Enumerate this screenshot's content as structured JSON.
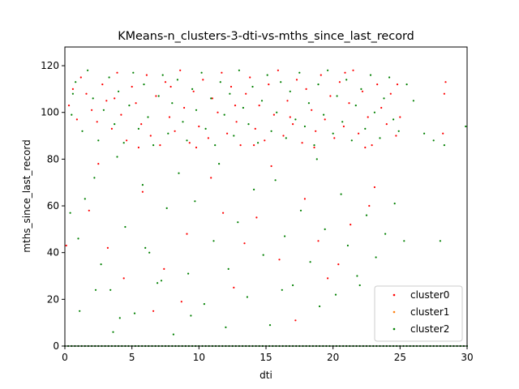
{
  "chart_data": {
    "type": "scatter",
    "title": "KMeans-n_clusters-3-dti-vs-mths_since_last_record",
    "xlabel": "dti",
    "ylabel": "mths_since_last_record",
    "xlim": [
      0,
      30
    ],
    "ylim": [
      0,
      128
    ],
    "xticks": [
      0,
      5,
      10,
      15,
      20,
      25,
      30
    ],
    "yticks": [
      0,
      20,
      40,
      60,
      80,
      100,
      120
    ],
    "grid": false,
    "legend_position": "lower-right",
    "series": [
      {
        "name": "cluster0",
        "color": "#ff0000",
        "points": [
          [
            0.3,
            103
          ],
          [
            0.6,
            110
          ],
          [
            0.9,
            97
          ],
          [
            1.2,
            115
          ],
          [
            1.6,
            108
          ],
          [
            2.0,
            101
          ],
          [
            2.4,
            96
          ],
          [
            2.8,
            112
          ],
          [
            3.1,
            105
          ],
          [
            3.5,
            93
          ],
          [
            3.9,
            117
          ],
          [
            4.2,
            99
          ],
          [
            4.6,
            88
          ],
          [
            5.0,
            111
          ],
          [
            5.3,
            104
          ],
          [
            5.7,
            95
          ],
          [
            6.1,
            116
          ],
          [
            6.4,
            90
          ],
          [
            6.8,
            107
          ],
          [
            7.1,
            86
          ],
          [
            7.5,
            113
          ],
          [
            7.8,
            98
          ],
          [
            8.2,
            92
          ],
          [
            8.6,
            118
          ],
          [
            8.9,
            102
          ],
          [
            9.3,
            87
          ],
          [
            9.6,
            109
          ],
          [
            10.0,
            94
          ],
          [
            10.3,
            114
          ],
          [
            10.7,
            89
          ],
          [
            11.0,
            106
          ],
          [
            11.4,
            100
          ],
          [
            11.7,
            117
          ],
          [
            12.1,
            91
          ],
          [
            12.4,
            111
          ],
          [
            12.8,
            96
          ],
          [
            13.1,
            86
          ],
          [
            13.5,
            108
          ],
          [
            13.8,
            115
          ],
          [
            14.2,
            93
          ],
          [
            14.5,
            103
          ],
          [
            14.9,
            88
          ],
          [
            15.2,
            112
          ],
          [
            15.6,
            99
          ],
          [
            15.9,
            118
          ],
          [
            16.3,
            90
          ],
          [
            16.6,
            105
          ],
          [
            17.0,
            95
          ],
          [
            17.3,
            114
          ],
          [
            17.7,
            87
          ],
          [
            18.0,
            110
          ],
          [
            18.4,
            101
          ],
          [
            18.7,
            92
          ],
          [
            19.1,
            116
          ],
          [
            19.4,
            97
          ],
          [
            19.8,
            107
          ],
          [
            20.1,
            89
          ],
          [
            20.5,
            113
          ],
          [
            20.8,
            94
          ],
          [
            21.2,
            104
          ],
          [
            21.5,
            118
          ],
          [
            21.9,
            91
          ],
          [
            22.2,
            109
          ],
          [
            22.6,
            98
          ],
          [
            22.9,
            86
          ],
          [
            23.3,
            112
          ],
          [
            23.6,
            102
          ],
          [
            24.0,
            95
          ],
          [
            24.3,
            108
          ],
          [
            24.7,
            90
          ],
          [
            5.5,
            85
          ],
          [
            9.8,
            85
          ],
          [
            14.1,
            86
          ],
          [
            18.6,
            85
          ],
          [
            22.4,
            85
          ],
          [
            16.8,
            98
          ],
          [
            12.7,
            103
          ],
          [
            7.9,
            111
          ],
          [
            20.9,
            117
          ],
          [
            3.7,
            106
          ],
          [
            1.8,
            58
          ],
          [
            3.2,
            42
          ],
          [
            5.8,
            66
          ],
          [
            7.4,
            33
          ],
          [
            9.1,
            48
          ],
          [
            10.9,
            72
          ],
          [
            12.6,
            25
          ],
          [
            14.3,
            55
          ],
          [
            16.0,
            37
          ],
          [
            17.9,
            63
          ],
          [
            19.6,
            29
          ],
          [
            21.3,
            52
          ],
          [
            23.1,
            68
          ],
          [
            4.4,
            29
          ],
          [
            8.7,
            19
          ],
          [
            13.4,
            44
          ],
          [
            17.2,
            11
          ],
          [
            20.4,
            35
          ],
          [
            22.7,
            60
          ],
          [
            11.8,
            57
          ],
          [
            28.2,
            91
          ],
          [
            28.4,
            113
          ],
          [
            28.3,
            108
          ],
          [
            25.0,
            98
          ],
          [
            24.8,
            112
          ],
          [
            0.1,
            43
          ],
          [
            6.6,
            15
          ],
          [
            15.4,
            77
          ],
          [
            18.9,
            45
          ],
          [
            2.5,
            78
          ]
        ]
      },
      {
        "name": "cluster1",
        "color": "#ff7f0e",
        "points": []
      },
      {
        "name": "cluster2",
        "color": "#008000",
        "points": [
          [
            0.5,
            99
          ],
          [
            0.8,
            113
          ],
          [
            1.3,
            92
          ],
          [
            1.7,
            118
          ],
          [
            2.1,
            106
          ],
          [
            2.5,
            88
          ],
          [
            2.9,
            101
          ],
          [
            3.3,
            115
          ],
          [
            3.7,
            95
          ],
          [
            4.0,
            109
          ],
          [
            4.4,
            87
          ],
          [
            4.8,
            103
          ],
          [
            5.1,
            117
          ],
          [
            5.5,
            93
          ],
          [
            5.9,
            112
          ],
          [
            6.2,
            98
          ],
          [
            6.6,
            86
          ],
          [
            7.0,
            107
          ],
          [
            7.3,
            116
          ],
          [
            7.7,
            91
          ],
          [
            8.0,
            104
          ],
          [
            8.4,
            114
          ],
          [
            8.8,
            96
          ],
          [
            9.1,
            88
          ],
          [
            9.5,
            110
          ],
          [
            9.8,
            101
          ],
          [
            10.2,
            117
          ],
          [
            10.5,
            93
          ],
          [
            10.9,
            106
          ],
          [
            11.2,
            86
          ],
          [
            11.6,
            113
          ],
          [
            11.9,
            99
          ],
          [
            12.3,
            108
          ],
          [
            12.6,
            90
          ],
          [
            13.0,
            118
          ],
          [
            13.3,
            102
          ],
          [
            13.7,
            95
          ],
          [
            14.0,
            111
          ],
          [
            14.4,
            87
          ],
          [
            14.7,
            105
          ],
          [
            15.1,
            116
          ],
          [
            15.4,
            92
          ],
          [
            15.8,
            100
          ],
          [
            16.1,
            113
          ],
          [
            16.5,
            89
          ],
          [
            16.8,
            109
          ],
          [
            17.2,
            97
          ],
          [
            17.5,
            117
          ],
          [
            17.9,
            94
          ],
          [
            18.2,
            104
          ],
          [
            18.6,
            86
          ],
          [
            18.9,
            112
          ],
          [
            19.3,
            99
          ],
          [
            19.6,
            118
          ],
          [
            20.0,
            91
          ],
          [
            20.3,
            107
          ],
          [
            20.7,
            96
          ],
          [
            21.0,
            114
          ],
          [
            21.4,
            88
          ],
          [
            21.7,
            103
          ],
          [
            22.1,
            110
          ],
          [
            22.4,
            93
          ],
          [
            22.8,
            116
          ],
          [
            23.1,
            100
          ],
          [
            23.5,
            89
          ],
          [
            23.8,
            106
          ],
          [
            24.2,
            115
          ],
          [
            24.5,
            97
          ],
          [
            24.9,
            92
          ],
          [
            25.5,
            112
          ],
          [
            0.4,
            57
          ],
          [
            1.0,
            46
          ],
          [
            1.5,
            63
          ],
          [
            2.2,
            72
          ],
          [
            2.7,
            35
          ],
          [
            3.4,
            24
          ],
          [
            3.9,
            81
          ],
          [
            4.5,
            51
          ],
          [
            5.2,
            14
          ],
          [
            5.8,
            69
          ],
          [
            6.3,
            40
          ],
          [
            6.9,
            27
          ],
          [
            7.6,
            59
          ],
          [
            8.1,
            5
          ],
          [
            8.5,
            74
          ],
          [
            9.2,
            31
          ],
          [
            9.7,
            62
          ],
          [
            10.4,
            18
          ],
          [
            11.1,
            45
          ],
          [
            11.5,
            78
          ],
          [
            12.2,
            33
          ],
          [
            12.9,
            53
          ],
          [
            13.6,
            21
          ],
          [
            14.1,
            67
          ],
          [
            14.8,
            39
          ],
          [
            15.3,
            9
          ],
          [
            15.7,
            71
          ],
          [
            16.4,
            47
          ],
          [
            17.0,
            26
          ],
          [
            17.6,
            58
          ],
          [
            18.3,
            36
          ],
          [
            18.8,
            80
          ],
          [
            19.4,
            50
          ],
          [
            20.2,
            22
          ],
          [
            20.6,
            65
          ],
          [
            21.1,
            43
          ],
          [
            21.8,
            30
          ],
          [
            22.5,
            56
          ],
          [
            23.2,
            38
          ],
          [
            23.9,
            48
          ],
          [
            24.6,
            61
          ],
          [
            25.3,
            45
          ],
          [
            26.0,
            105
          ],
          [
            26.8,
            91
          ],
          [
            27.5,
            88
          ],
          [
            28.0,
            45
          ],
          [
            28.3,
            86
          ],
          [
            29.9,
            94
          ],
          [
            0.6,
            108
          ],
          [
            3.6,
            6
          ],
          [
            1.1,
            15
          ],
          [
            4.1,
            12
          ],
          [
            6.0,
            42
          ],
          [
            9.4,
            13
          ],
          [
            12.0,
            8
          ],
          [
            16.2,
            24
          ],
          [
            19.0,
            17
          ],
          [
            22.0,
            26
          ],
          [
            2.3,
            24
          ],
          [
            7.2,
            28
          ]
        ]
      }
    ],
    "zero_line_note": ""
  }
}
